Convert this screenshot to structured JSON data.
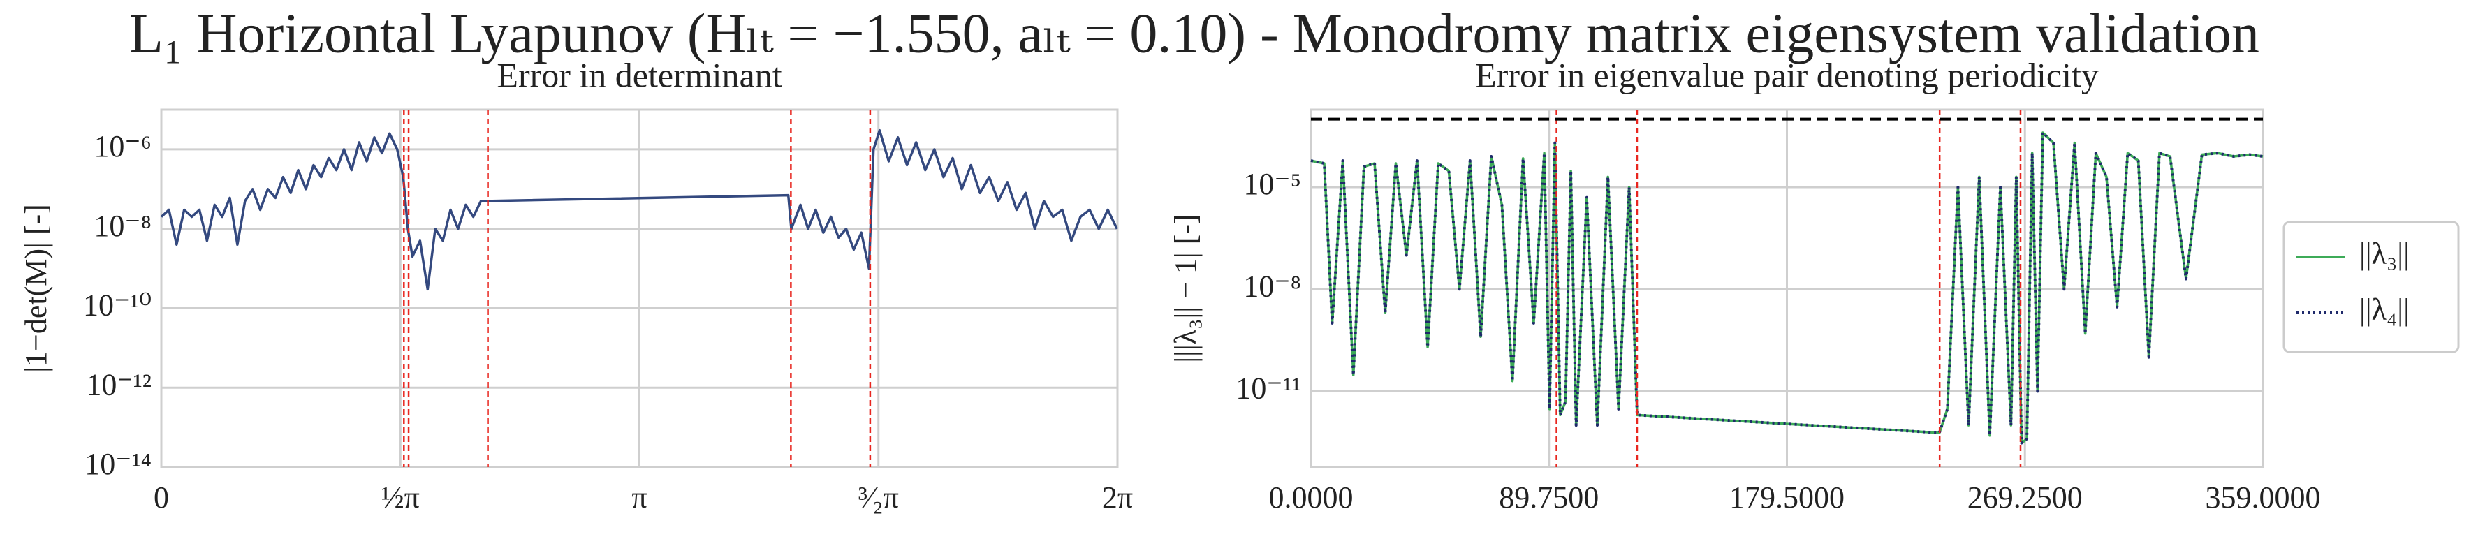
{
  "title": "L₁ Horizontal Lyapunov (Hₗₜ = −1.550, aₗₜ = 0.10) - Monodromy matrix eigensystem validation",
  "chart_data": [
    {
      "type": "line",
      "title": "Error in determinant",
      "ylabel": "|1−det(M)| [-]",
      "log_y": true,
      "grid": true,
      "xlim": [
        0,
        6.2832
      ],
      "ylim": [
        1e-14,
        1e-05
      ],
      "xticks": [
        {
          "value": 0,
          "label": "0"
        },
        {
          "value": 1.5708,
          "label": "½π"
        },
        {
          "value": 3.1416,
          "label": "π"
        },
        {
          "value": 4.7124,
          "label": "³⁄₂π"
        },
        {
          "value": 6.2832,
          "label": "2π"
        }
      ],
      "yticks": [
        {
          "value": 1e-14,
          "label": "10⁻¹⁴"
        },
        {
          "value": 1e-12,
          "label": "10⁻¹²"
        },
        {
          "value": 1e-10,
          "label": "10⁻¹⁰"
        },
        {
          "value": 1e-08,
          "label": "10⁻⁸"
        },
        {
          "value": 1e-06,
          "label": "10⁻⁶"
        }
      ],
      "vlines": [
        1.594,
        1.625,
        2.146,
        4.137,
        4.658
      ],
      "vline_color": "#e8261f",
      "x": [
        0,
        0.05,
        0.1,
        0.15,
        0.2,
        0.25,
        0.3,
        0.35,
        0.4,
        0.45,
        0.5,
        0.55,
        0.6,
        0.65,
        0.7,
        0.75,
        0.8,
        0.85,
        0.9,
        0.95,
        1.0,
        1.05,
        1.1,
        1.15,
        1.2,
        1.25,
        1.3,
        1.35,
        1.4,
        1.45,
        1.5,
        1.55,
        1.59,
        1.62,
        1.65,
        1.7,
        1.75,
        1.8,
        1.85,
        1.9,
        1.95,
        2.0,
        2.05,
        2.1,
        2.146,
        4.12,
        4.14,
        4.2,
        4.25,
        4.3,
        4.35,
        4.4,
        4.45,
        4.5,
        4.55,
        4.6,
        4.65,
        4.68,
        4.72,
        4.78,
        4.84,
        4.9,
        4.96,
        5.02,
        5.08,
        5.14,
        5.2,
        5.26,
        5.32,
        5.38,
        5.44,
        5.5,
        5.56,
        5.62,
        5.68,
        5.74,
        5.8,
        5.86,
        5.92,
        5.98,
        6.04,
        6.1,
        6.16,
        6.22,
        6.28
      ],
      "series": [
        {
          "color": "#34497f",
          "values": [
            2e-08,
            3e-08,
            4e-09,
            3e-08,
            2e-08,
            3e-08,
            5e-09,
            4e-08,
            2e-08,
            6e-08,
            4e-09,
            5e-08,
            1e-07,
            3e-08,
            1e-07,
            6e-08,
            2e-07,
            8e-08,
            3e-07,
            1e-07,
            4e-07,
            2e-07,
            6e-07,
            3e-07,
            1e-06,
            3e-07,
            1.5e-06,
            5e-07,
            2e-06,
            8e-07,
            2.5e-06,
            1e-06,
            2e-07,
            1e-08,
            2e-09,
            5e-09,
            3e-10,
            1e-08,
            5e-09,
            3e-08,
            1e-08,
            4e-08,
            2e-08,
            5e-08,
            5e-08,
            7e-08,
            1e-08,
            4e-08,
            1e-08,
            3e-08,
            8e-09,
            2e-08,
            6e-09,
            1e-08,
            3e-09,
            8e-09,
            1e-09,
            1e-06,
            3e-06,
            5e-07,
            2e-06,
            4e-07,
            1.5e-06,
            3e-07,
            1e-06,
            2e-07,
            6e-07,
            1e-07,
            4e-07,
            8e-08,
            2e-07,
            5e-08,
            1.5e-07,
            3e-08,
            8e-08,
            1e-08,
            5e-08,
            2e-08,
            3e-08,
            5e-09,
            2e-08,
            3e-08,
            1e-08,
            3e-08,
            1e-08
          ]
        }
      ]
    },
    {
      "type": "line",
      "title": "Error in eigenvalue pair denoting periodicity",
      "ylabel": "|||λ₃|| − 1| [-]",
      "log_y": true,
      "grid": true,
      "legend": "outside-right",
      "xlim": [
        0,
        359
      ],
      "ylim": [
        5.9e-14,
        0.0019
      ],
      "xticks": [
        {
          "value": 0,
          "label": "0.0000"
        },
        {
          "value": 89.75,
          "label": "89.7500"
        },
        {
          "value": 179.5,
          "label": "179.5000"
        },
        {
          "value": 269.25,
          "label": "269.2500"
        },
        {
          "value": 359,
          "label": "359.0000"
        }
      ],
      "yticks": [
        {
          "value": 1e-11,
          "label": "10⁻¹¹"
        },
        {
          "value": 1e-08,
          "label": "10⁻⁸"
        },
        {
          "value": 1e-05,
          "label": "10⁻⁵"
        }
      ],
      "vlines": [
        92.6,
        123.0,
        237.1,
        267.6
      ],
      "vline_color": "#e8261f",
      "hlines": [
        0.001
      ],
      "hline_color": "#000000",
      "x": [
        0,
        5,
        8,
        12,
        16,
        20,
        24,
        28,
        32,
        36,
        40,
        44,
        48,
        52,
        56,
        60,
        64,
        68,
        72,
        76,
        80,
        84,
        88,
        90,
        92,
        94,
        96,
        98,
        100,
        104,
        108,
        112,
        116,
        120,
        123,
        237,
        240,
        244,
        248,
        252,
        256,
        260,
        264,
        266,
        268,
        270,
        272,
        274,
        276,
        280,
        284,
        288,
        292,
        296,
        300,
        304,
        308,
        312,
        316,
        320,
        324,
        330,
        336,
        342,
        348,
        354,
        359
      ],
      "series": [
        {
          "name": "||λ₃||",
          "color": "#3dab58",
          "linestyle": "solid",
          "values": [
            6e-05,
            5e-05,
            1e-09,
            6e-05,
            3e-11,
            4e-05,
            5e-05,
            2e-09,
            5e-05,
            1e-07,
            6e-05,
            2e-10,
            5e-05,
            3e-05,
            1e-08,
            6e-05,
            4e-10,
            8e-05,
            3e-06,
            2e-11,
            7e-05,
            1e-09,
            0.0001,
            3e-12,
            0.0002,
            2e-12,
            5e-12,
            3e-05,
            1e-12,
            5e-06,
            1e-12,
            2e-05,
            3e-12,
            1e-05,
            2e-12,
            6e-13,
            3e-12,
            1e-05,
            1e-12,
            2e-05,
            5e-13,
            1e-05,
            1e-12,
            2e-05,
            3e-13,
            4e-13,
            0.0001,
            1e-11,
            0.0004,
            0.0002,
            1e-08,
            0.0002,
            5e-10,
            0.0001,
            2e-05,
            3e-09,
            0.0001,
            6e-05,
            1e-10,
            0.0001,
            8e-05,
            2e-08,
            9e-05,
            0.0001,
            8e-05,
            9e-05,
            8e-05
          ]
        },
        {
          "name": "||λ₄||",
          "color": "#1f2a6b",
          "linestyle": "dotted",
          "values": [
            6e-05,
            5e-05,
            1e-09,
            6e-05,
            3e-11,
            4e-05,
            5e-05,
            2e-09,
            5e-05,
            1e-07,
            6e-05,
            2e-10,
            5e-05,
            3e-05,
            1e-08,
            6e-05,
            4e-10,
            8e-05,
            3e-06,
            2e-11,
            7e-05,
            1e-09,
            0.0001,
            3e-12,
            0.0002,
            2e-12,
            5e-12,
            3e-05,
            1e-12,
            5e-06,
            1e-12,
            2e-05,
            3e-12,
            1e-05,
            2e-12,
            6e-13,
            3e-12,
            1e-05,
            1e-12,
            2e-05,
            5e-13,
            1e-05,
            1e-12,
            2e-05,
            3e-13,
            4e-13,
            0.0001,
            1e-11,
            0.0004,
            0.0002,
            1e-08,
            0.0002,
            5e-10,
            0.0001,
            2e-05,
            3e-09,
            0.0001,
            6e-05,
            1e-10,
            0.0001,
            8e-05,
            2e-08,
            9e-05,
            0.0001,
            8e-05,
            9e-05,
            8e-05
          ]
        }
      ]
    }
  ]
}
